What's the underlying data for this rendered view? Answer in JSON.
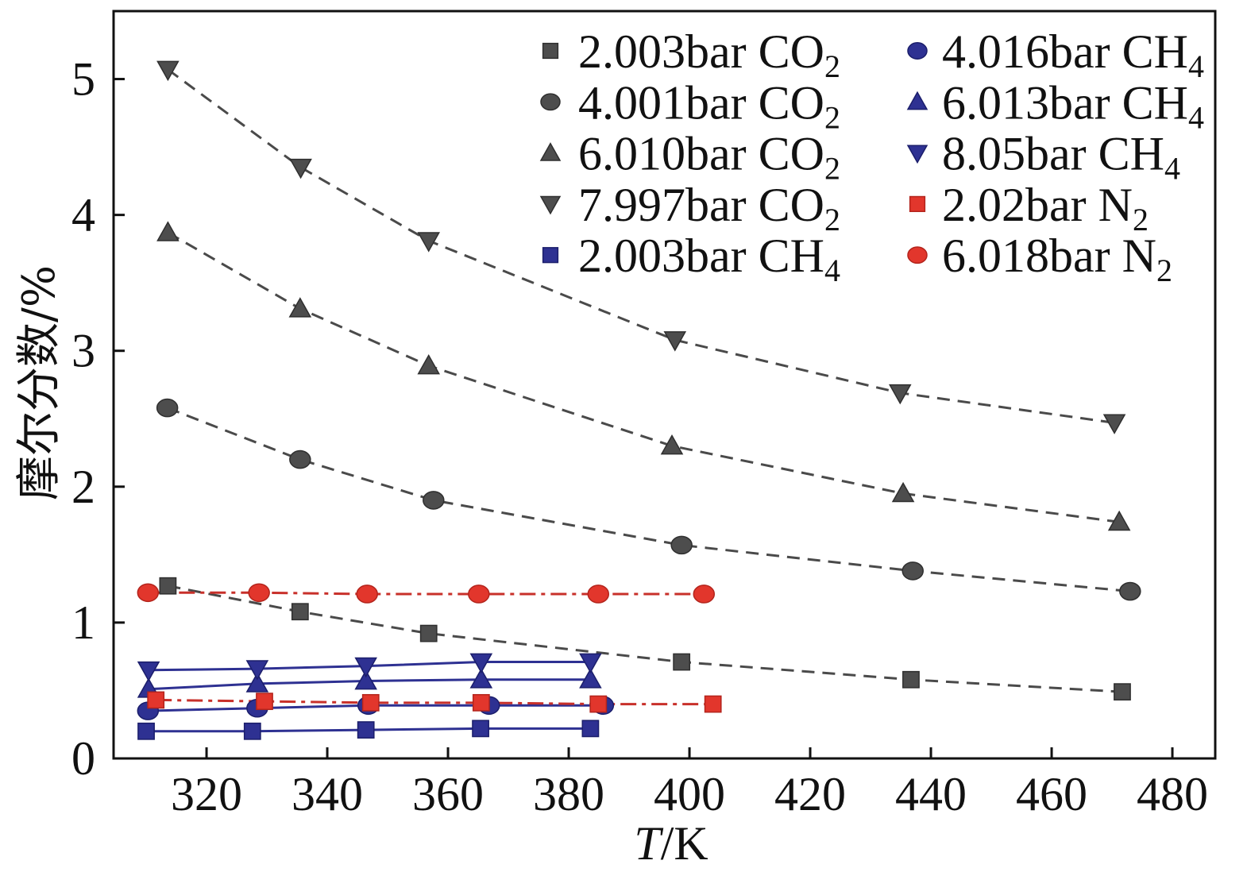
{
  "chart_data": {
    "type": "line",
    "title": "",
    "xlabel": {
      "var": "T",
      "unit": "/K"
    },
    "ylabel": "摩尔分数/%",
    "xlim": [
      304.6,
      487.1
    ],
    "ylim": [
      0,
      5.5
    ],
    "xticks": [
      320,
      340,
      360,
      380,
      400,
      420,
      440,
      460,
      480
    ],
    "yticks": [
      0,
      1,
      2,
      3,
      4,
      5
    ],
    "grid": false,
    "legend": {
      "placement": "top-right",
      "columns": 2
    },
    "series": [
      {
        "label": "2.003bar CO",
        "sub": "2",
        "marker": "square",
        "color": "#4d4d4d",
        "line": "dashed",
        "x": [
          313.6,
          335.5,
          356.8,
          398.7,
          436.7,
          471.7
        ],
        "y": [
          1.27,
          1.08,
          0.92,
          0.71,
          0.58,
          0.49
        ]
      },
      {
        "label": "4.001bar CO",
        "sub": "2",
        "marker": "circle",
        "color": "#4d4d4d",
        "line": "dashed",
        "x": [
          313.5,
          335.5,
          357.6,
          398.7,
          437.0,
          473.0
        ],
        "y": [
          2.58,
          2.2,
          1.9,
          1.57,
          1.38,
          1.23
        ]
      },
      {
        "label": "6.010bar CO",
        "sub": "2",
        "marker": "triangle-up",
        "color": "#4d4d4d",
        "line": "dashed",
        "x": [
          313.6,
          335.5,
          356.8,
          397.1,
          435.4,
          471.2
        ],
        "y": [
          3.87,
          3.31,
          2.89,
          2.3,
          1.95,
          1.74
        ]
      },
      {
        "label": "7.997bar CO",
        "sub": "2",
        "marker": "triangle-down",
        "color": "#4d4d4d",
        "line": "dashed",
        "x": [
          313.6,
          335.6,
          356.8,
          397.6,
          434.9,
          470.4
        ],
        "y": [
          5.07,
          4.35,
          3.81,
          3.08,
          2.69,
          2.47
        ]
      },
      {
        "label": "2.003bar CH",
        "sub": "4",
        "marker": "square",
        "color": "#2e3192",
        "line": "solid",
        "x": [
          310.0,
          327.6,
          346.4,
          365.4,
          383.6
        ],
        "y": [
          0.2,
          0.2,
          0.21,
          0.22,
          0.22
        ]
      },
      {
        "label": "4.016bar CH",
        "sub": "4",
        "marker": "circle",
        "color": "#2e3192",
        "line": "solid",
        "x": [
          310.3,
          328.4,
          346.8,
          366.8,
          385.7
        ],
        "y": [
          0.35,
          0.37,
          0.39,
          0.39,
          0.39
        ]
      },
      {
        "label": "6.013bar CH",
        "sub": "4",
        "marker": "triangle-up",
        "color": "#2e3192",
        "line": "solid",
        "x": [
          310.4,
          328.4,
          346.4,
          365.5,
          383.6
        ],
        "y": [
          0.51,
          0.55,
          0.57,
          0.58,
          0.58
        ]
      },
      {
        "label": "8.05bar CH",
        "sub": "4",
        "marker": "triangle-down",
        "color": "#2e3192",
        "line": "solid",
        "x": [
          310.4,
          328.4,
          346.4,
          365.5,
          383.6
        ],
        "y": [
          0.65,
          0.66,
          0.68,
          0.71,
          0.71
        ]
      },
      {
        "label": "2.02bar N",
        "sub": "2",
        "marker": "square",
        "color": "#e2362c",
        "line": "dashdot",
        "x": [
          311.6,
          329.6,
          347.2,
          365.5,
          384.9,
          403.9
        ],
        "y": [
          0.43,
          0.42,
          0.41,
          0.41,
          0.4,
          0.4
        ]
      },
      {
        "label": "6.018bar N",
        "sub": "2",
        "marker": "circle",
        "color": "#e2362c",
        "line": "dashdot",
        "x": [
          310.3,
          328.7,
          346.6,
          365.1,
          384.9,
          402.4
        ],
        "y": [
          1.22,
          1.22,
          1.21,
          1.21,
          1.21,
          1.21
        ]
      }
    ]
  }
}
